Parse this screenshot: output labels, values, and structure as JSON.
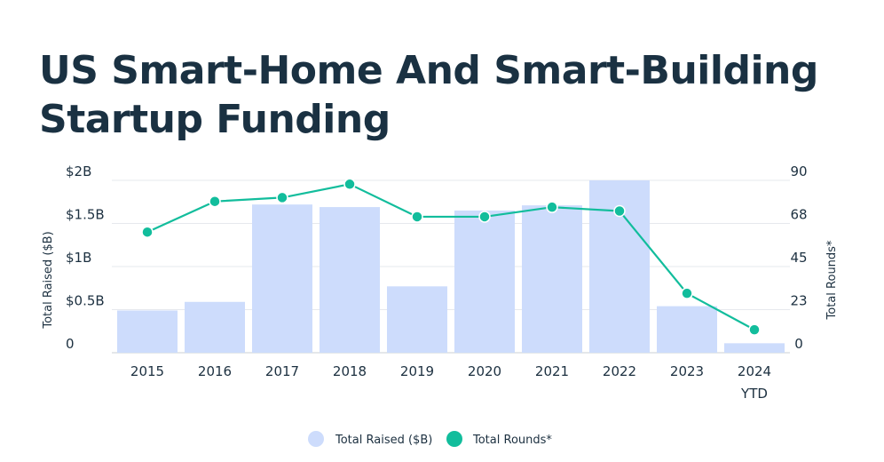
{
  "chart_data": {
    "type": "bar",
    "title_lines": [
      "US Smart-Home And Smart-Building",
      "Startup Funding"
    ],
    "categories": [
      {
        "label": "2015",
        "sub": ""
      },
      {
        "label": "2016",
        "sub": ""
      },
      {
        "label": "2017",
        "sub": ""
      },
      {
        "label": "2018",
        "sub": ""
      },
      {
        "label": "2019",
        "sub": ""
      },
      {
        "label": "2020",
        "sub": ""
      },
      {
        "label": "2021",
        "sub": ""
      },
      {
        "label": "2022",
        "sub": ""
      },
      {
        "label": "2023",
        "sub": ""
      },
      {
        "label": "2024",
        "sub": "YTD"
      }
    ],
    "series": [
      {
        "name": "Total Raised ($B)",
        "type": "bar",
        "axis": "left",
        "color": "#cddcfc",
        "values": [
          0.49,
          0.59,
          1.72,
          1.69,
          0.77,
          1.65,
          1.71,
          2.0,
          0.54,
          0.11
        ]
      },
      {
        "name": "Total Rounds*",
        "type": "line",
        "axis": "right",
        "color": "#12bd9c",
        "values": [
          63,
          79,
          81,
          88,
          71,
          71,
          76,
          74,
          31,
          12
        ]
      }
    ],
    "y_left": {
      "label": "Total Raised ($B)",
      "ylim": [
        0,
        2
      ],
      "ticks": [
        {
          "v": 0,
          "t": "0"
        },
        {
          "v": 0.5,
          "t": "$0.5B"
        },
        {
          "v": 1,
          "t": "$1B"
        },
        {
          "v": 1.5,
          "t": "$1.5B"
        },
        {
          "v": 2,
          "t": "$2B"
        }
      ]
    },
    "y_right": {
      "label": "Total Rounds*",
      "ylim": [
        0,
        90
      ],
      "ticks": [
        {
          "v": 0,
          "t": "0"
        },
        {
          "v": 22.5,
          "t": "23"
        },
        {
          "v": 45,
          "t": "45"
        },
        {
          "v": 67.5,
          "t": "68"
        },
        {
          "v": 90,
          "t": "90"
        }
      ]
    },
    "grid": true,
    "legend_position": "bottom-center"
  }
}
